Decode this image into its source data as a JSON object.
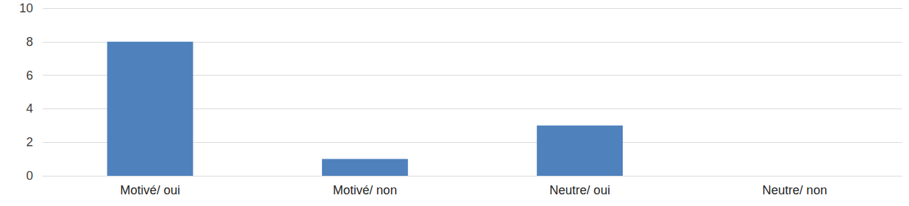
{
  "chart_data": {
    "type": "bar",
    "categories": [
      "Motivé/ oui",
      "Motivé/ non",
      "Neutre/ oui",
      "Neutre/ non"
    ],
    "values": [
      8,
      1,
      3,
      0
    ],
    "color": "#4f81bd",
    "ylim": [
      0,
      10
    ],
    "yticks": [
      0,
      2,
      4,
      6,
      8,
      10
    ],
    "grid": true
  }
}
